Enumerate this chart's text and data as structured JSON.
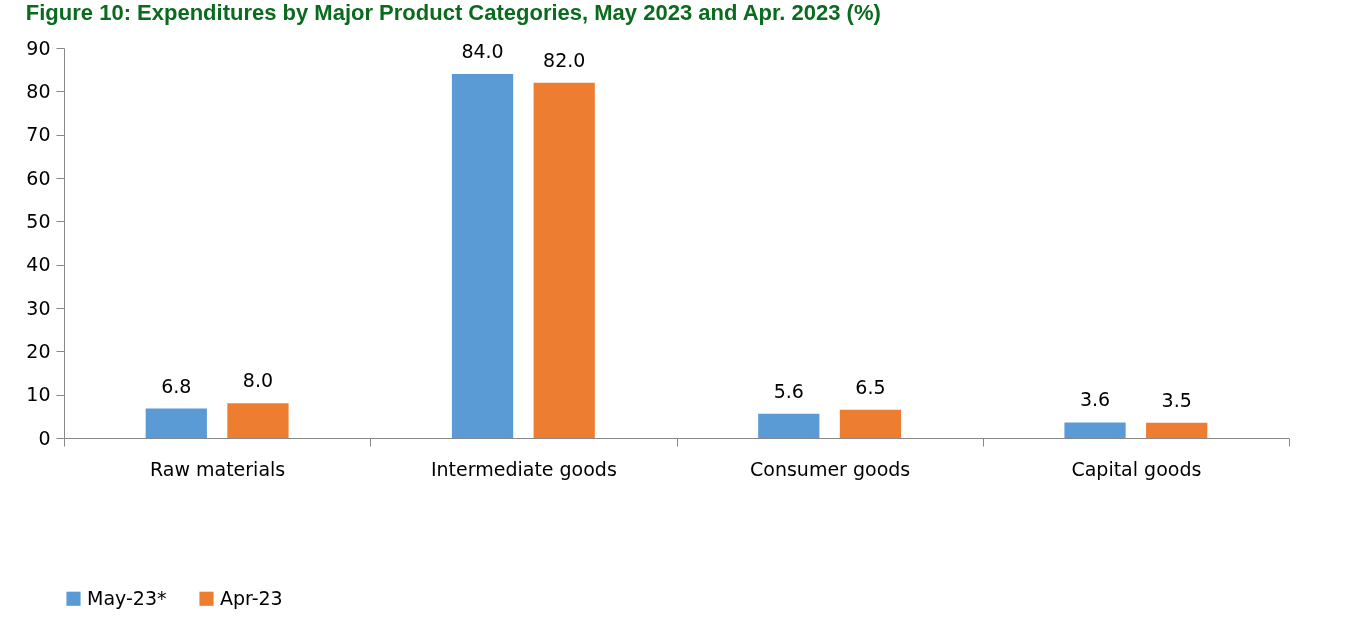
{
  "chart_data": {
    "type": "bar",
    "title": "Figure 10: Expenditures by Major Product Categories, May 2023 and Apr. 2023 (%)",
    "categories": [
      "Raw materials",
      "Intermediate goods",
      "Consumer goods",
      "Capital goods"
    ],
    "series": [
      {
        "name": "May-23*",
        "color": "#5b9bd5",
        "values": [
          6.8,
          84.0,
          5.6,
          3.6
        ],
        "value_labels": [
          "6.8",
          "84.0",
          "5.6",
          "3.6"
        ]
      },
      {
        "name": "Apr-23",
        "color": "#ed7d31",
        "values": [
          8.0,
          82.0,
          6.5,
          3.5
        ],
        "value_labels": [
          "8.0",
          "82.0",
          "6.5",
          "3.5"
        ]
      }
    ],
    "ylim": [
      0,
      90
    ],
    "yticks": [
      0,
      10,
      20,
      30,
      40,
      50,
      60,
      70,
      80,
      90
    ],
    "grid": false,
    "legend": "bottom"
  }
}
